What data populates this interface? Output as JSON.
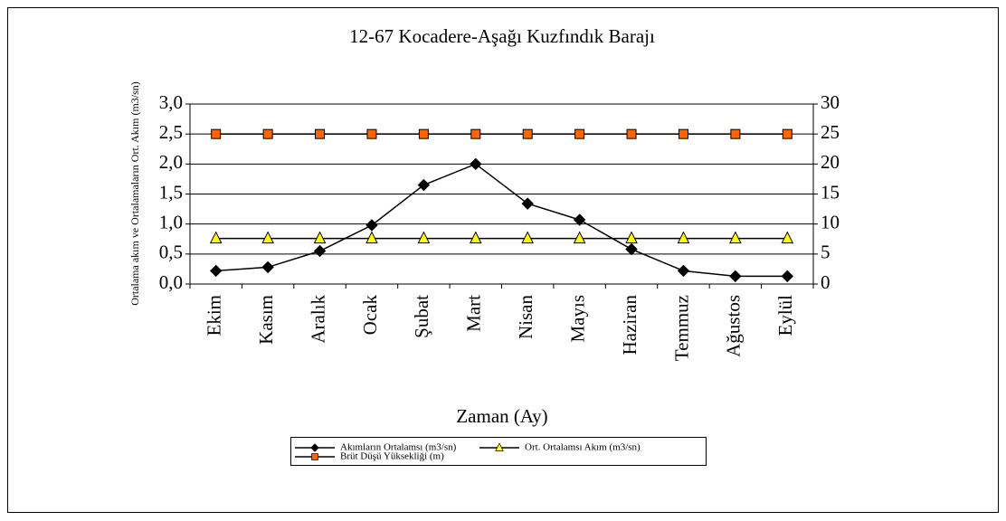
{
  "chart_data": {
    "type": "line",
    "title": "12-67 Kocadere-Aşağı Kuzfındık Barajı",
    "xlabel": "Zaman (Ay)",
    "ylabel": "Ortalama akım ve Ortalamaların Ort. Akım (m3/sn)",
    "categories": [
      "Ekim",
      "Kasım",
      "Aralık",
      "Ocak",
      "Şubat",
      "Mart",
      "Nisan",
      "Mayıs",
      "Haziran",
      "Temmuz",
      "Ağustos",
      "Eylül"
    ],
    "series": [
      {
        "name": "Akımların Ortalamsı (m3/sn)",
        "color": "#000000",
        "marker": "diamond",
        "values": [
          0.22,
          0.28,
          0.55,
          0.98,
          1.65,
          2.0,
          1.34,
          1.07,
          0.58,
          0.22,
          0.13,
          0.13
        ]
      },
      {
        "name": "Ort. Ortalamsı Akım (m3/sn)",
        "color": "#ffff00",
        "marker": "triangle",
        "values": [
          0.76,
          0.76,
          0.76,
          0.76,
          0.76,
          0.76,
          0.76,
          0.76,
          0.76,
          0.76,
          0.76,
          0.76
        ]
      },
      {
        "name": "Brüt Düşü Yüksekliği (m)",
        "color": "#ff6600",
        "marker": "square",
        "axis": "y2",
        "values": [
          25,
          25,
          25,
          25,
          25,
          25,
          25,
          25,
          25,
          25,
          25,
          25
        ]
      }
    ],
    "ylim": [
      0,
      3
    ],
    "yticks": [
      {
        "value": 0,
        "label": "0,0"
      },
      {
        "value": 0.5,
        "label": "0,5"
      },
      {
        "value": 1,
        "label": "1,0"
      },
      {
        "value": 1.5,
        "label": "1,5"
      },
      {
        "value": 2,
        "label": "2,0"
      },
      {
        "value": 2.5,
        "label": "2,5"
      },
      {
        "value": 3,
        "label": "3,0"
      }
    ],
    "y2lim": [
      0,
      30
    ],
    "y2ticks": [
      0,
      5,
      10,
      15,
      20,
      25,
      30
    ],
    "grid": true,
    "legend": "bottom"
  }
}
